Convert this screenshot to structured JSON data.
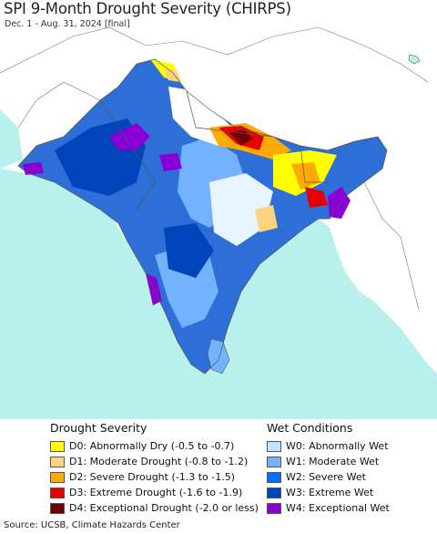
{
  "title": "SPI 9-Month Drought Severity (CHIRPS)",
  "subtitle": "Dec. 1 - Aug. 31, 2024 [final]",
  "legend_drought": {
    "title": "Drought Severity",
    "items": [
      {
        "label": "D0: Abnormally Dry (-0.5 to -0.7)",
        "color": "#ffff00"
      },
      {
        "label": "D1: Moderate Drought (-0.8 to -1.2)",
        "color": "#fcd37f"
      },
      {
        "label": "D2: Severe Drought (-1.3 to -1.5)",
        "color": "#ffaa00"
      },
      {
        "label": "D3: Extreme Drought (-1.6 to -1.9)",
        "color": "#e60000"
      },
      {
        "label": "D4: Exceptional Drought (-2.0 or less)",
        "color": "#730000"
      }
    ]
  },
  "legend_wet": {
    "title": "Wet Conditions",
    "items": [
      {
        "label": "W0: Abnormally Wet",
        "color": "#bfe6ff"
      },
      {
        "label": "W1: Moderate Wet",
        "color": "#73b2ff"
      },
      {
        "label": "W2: Severe Wet",
        "color": "#0070ff"
      },
      {
        "label": "W3: Extreme Wet",
        "color": "#0044bb"
      },
      {
        "label": "W4: Exceptional Wet",
        "color": "#8a00d4"
      }
    ]
  },
  "source": "Source: UCSB, Climate Hazards Center",
  "map_colors": {
    "ocean": "#b8f1ec",
    "land_other": "#ffffff",
    "border": "#555555"
  }
}
